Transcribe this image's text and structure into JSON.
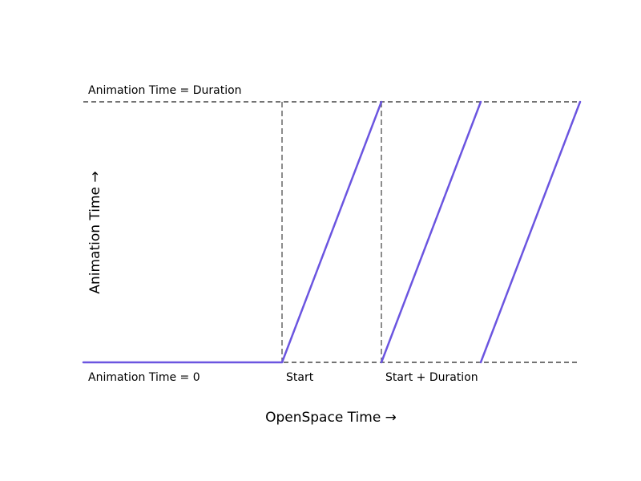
{
  "chart_data": {
    "type": "line",
    "xlabel": "OpenSpace Time →",
    "ylabel": "Animation Time →",
    "series_color": "#6b55e0",
    "reference_line_color": "#222222",
    "guide_line_color": "#666666",
    "xlim": [
      0,
      5
    ],
    "ylim": [
      0,
      1
    ],
    "series": [
      {
        "segments": [
          [
            [
              0,
              0
            ],
            [
              2,
              0
            ],
            [
              3,
              1
            ]
          ],
          [
            [
              3,
              0
            ],
            [
              4,
              1
            ]
          ],
          [
            [
              4,
              0
            ],
            [
              5,
              1
            ]
          ]
        ]
      }
    ],
    "horizontal_reference_lines": [
      {
        "y": 1,
        "label": "Animation Time = Duration"
      },
      {
        "y": 0,
        "label": "Animation Time = 0"
      }
    ],
    "vertical_reference_lines": [
      {
        "x": 2,
        "label": "Start"
      },
      {
        "x": 3,
        "label": "Start + Duration"
      }
    ]
  }
}
